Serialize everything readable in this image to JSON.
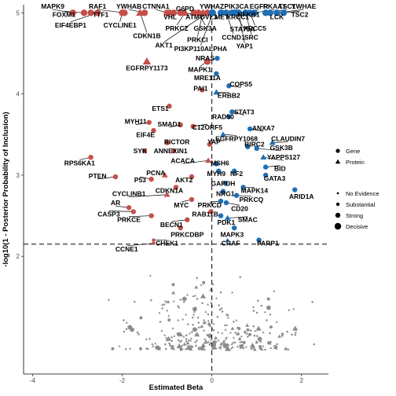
{
  "chart_data": {
    "type": "scatter",
    "title": "",
    "xlabel": "Estimated Beta",
    "ylabel": "-log10(1 - Posterior Probability of Inclusion)",
    "xlim": [
      -4.2,
      2.6
    ],
    "ylim": [
      0.55,
      5.1
    ],
    "x_ticks": [
      -4,
      -2,
      0,
      2
    ],
    "y_ticks": [
      2,
      3,
      4,
      5
    ],
    "threshold_y": 2.15,
    "zero_x": 0,
    "grid": false,
    "colors": {
      "negative": "#c4504a",
      "positive": "#1f6fb5",
      "insignificant": "#8c8c8c"
    },
    "legend_shape": {
      "items": [
        {
          "label": "Gene",
          "shape": "circle"
        },
        {
          "label": "Protein",
          "shape": "triangle"
        }
      ]
    },
    "legend_size": {
      "items": [
        {
          "label": "No Evidence",
          "size": 1
        },
        {
          "label": "Substantial",
          "size": 2
        },
        {
          "label": "Strong",
          "size": 3
        },
        {
          "label": "Decisive",
          "size": 4
        }
      ]
    },
    "points": [
      {
        "label": "MAPK9",
        "x": -3.1,
        "y": 5.0,
        "shape": "circle",
        "size": 4,
        "lx": -3.55,
        "ly": 5.08
      },
      {
        "label": "RAF1",
        "x": -1.95,
        "y": 5.0,
        "shape": "circle",
        "size": 4,
        "lx": -2.55,
        "ly": 5.08
      },
      {
        "label": "YWHAB",
        "x": -1.5,
        "y": 5.0,
        "shape": "circle",
        "size": 4,
        "lx": -1.85,
        "ly": 5.08
      },
      {
        "label": "CTNNA1",
        "x": -1.0,
        "y": 5.0,
        "shape": "circle",
        "size": 4,
        "lx": -1.25,
        "ly": 5.08
      },
      {
        "label": "FOXM1",
        "x": -2.85,
        "y": 5.0,
        "shape": "circle",
        "size": 4,
        "lx": -3.3,
        "ly": 4.98
      },
      {
        "label": "TTF1",
        "x": -2.7,
        "y": 5.0,
        "shape": "circle",
        "size": 4,
        "lx": -2.48,
        "ly": 4.98
      },
      {
        "label": "EIF4EBP1",
        "x": -2.55,
        "y": 5.0,
        "shape": "circle",
        "size": 4,
        "lx": -3.15,
        "ly": 4.85
      },
      {
        "label": "CYCLINE1",
        "x": -2.0,
        "y": 5.0,
        "shape": "circle",
        "size": 4,
        "lx": -2.05,
        "ly": 4.85
      },
      {
        "label": "CDKN1B",
        "x": -1.6,
        "y": 5.0,
        "shape": "triangle",
        "size": 4,
        "lx": -1.45,
        "ly": 4.72
      },
      {
        "label": "G6PD",
        "x": -0.85,
        "y": 5.0,
        "shape": "circle",
        "size": 4,
        "lx": -0.6,
        "ly": 5.05
      },
      {
        "label": "VHL",
        "x": -0.95,
        "y": 5.0,
        "shape": "circle",
        "size": 4,
        "lx": -0.93,
        "ly": 4.95
      },
      {
        "label": "ATM",
        "x": -0.7,
        "y": 5.0,
        "shape": "circle",
        "size": 4,
        "lx": -0.43,
        "ly": 4.95
      },
      {
        "label": "PRKCZ",
        "x": -0.6,
        "y": 5.0,
        "shape": "triangle",
        "size": 4,
        "lx": -0.78,
        "ly": 4.81
      },
      {
        "label": "DVL3",
        "x": -0.4,
        "y": 5.0,
        "shape": "circle",
        "size": 4,
        "lx": -0.07,
        "ly": 4.95
      },
      {
        "label": "GSK3A",
        "x": -0.3,
        "y": 5.0,
        "shape": "circle",
        "size": 4,
        "lx": -0.15,
        "ly": 4.81
      },
      {
        "label": "PRKCI",
        "x": -0.2,
        "y": 5.0,
        "shape": "triangle",
        "size": 4,
        "lx": -0.32,
        "ly": 4.67
      },
      {
        "label": "AKT1",
        "x": -0.1,
        "y": 5.0,
        "shape": "circle",
        "size": 4,
        "lx": -1.07,
        "ly": 4.6
      },
      {
        "label": "PI3KP110ALPHA",
        "x": 0.02,
        "y": 5.0,
        "shape": "circle",
        "size": 4,
        "lx": -0.25,
        "ly": 4.56
      },
      {
        "label": "YWHAZ",
        "x": 0.0,
        "y": 5.0,
        "shape": "circle",
        "size": 4,
        "lx": 0.0,
        "ly": 5.08
      },
      {
        "label": "PIK3CA",
        "x": 0.2,
        "y": 5.0,
        "shape": "circle",
        "size": 4,
        "lx": 0.55,
        "ly": 5.08
      },
      {
        "label": "NFKB1",
        "x": 0.55,
        "y": 5.0,
        "shape": "circle",
        "size": 4,
        "lx": 0.82,
        "ly": 4.98
      },
      {
        "label": "EGFR",
        "x": 0.75,
        "y": 5.0,
        "shape": "circle",
        "size": 4,
        "lx": 1.05,
        "ly": 5.08
      },
      {
        "label": "RKAA1",
        "x": 0.95,
        "y": 5.0,
        "shape": "circle",
        "size": 4,
        "lx": 1.4,
        "ly": 5.08
      },
      {
        "label": "TSC1",
        "x": 1.2,
        "y": 5.0,
        "shape": "circle",
        "size": 4,
        "lx": 1.68,
        "ly": 5.08
      },
      {
        "label": "YWHAE",
        "x": 1.45,
        "y": 5.0,
        "shape": "circle",
        "size": 4,
        "lx": 2.05,
        "ly": 5.08
      },
      {
        "label": "MET",
        "x": 0.22,
        "y": 5.0,
        "shape": "circle",
        "size": 4,
        "lx": 0.22,
        "ly": 4.95
      },
      {
        "label": "XRCC1",
        "x": 0.45,
        "y": 5.0,
        "shape": "circle",
        "size": 4,
        "lx": 0.58,
        "ly": 4.95
      },
      {
        "label": "TSC2",
        "x": 1.6,
        "y": 5.0,
        "shape": "circle",
        "size": 4,
        "lx": 1.96,
        "ly": 4.98
      },
      {
        "label": "LCK",
        "x": 1.3,
        "y": 5.0,
        "shape": "circle",
        "size": 4,
        "lx": 1.45,
        "ly": 4.95
      },
      {
        "label": "XRCC5",
        "x": 0.85,
        "y": 5.0,
        "shape": "circle",
        "size": 4,
        "lx": 0.96,
        "ly": 4.81
      },
      {
        "label": "STAT5A",
        "x": 0.52,
        "y": 5.0,
        "shape": "circle",
        "size": 4,
        "lx": 0.68,
        "ly": 4.8
      },
      {
        "label": "CCND1",
        "x": 0.32,
        "y": 5.0,
        "shape": "circle",
        "size": 4,
        "lx": 0.48,
        "ly": 4.7
      },
      {
        "label": "SRC",
        "x": 0.75,
        "y": 5.0,
        "shape": "circle",
        "size": 4,
        "lx": 0.88,
        "ly": 4.7
      },
      {
        "label": "YAP1",
        "x": 0.6,
        "y": 5.0,
        "shape": "circle",
        "size": 4,
        "lx": 0.73,
        "ly": 4.59
      },
      {
        "label": "NRAS",
        "x": 0.12,
        "y": 4.44,
        "shape": "circle",
        "size": 3,
        "lx": -0.15,
        "ly": 4.44
      },
      {
        "label": "EGFRPY1173",
        "x": -1.45,
        "y": 4.4,
        "shape": "triangle",
        "size": 4,
        "lx": -1.45,
        "ly": 4.32
      },
      {
        "label": "MAPK1",
        "x": -0.1,
        "y": 4.4,
        "shape": "circle",
        "size": 4,
        "lx": -0.27,
        "ly": 4.3
      },
      {
        "label": "MRE11A",
        "x": 0.1,
        "y": 4.25,
        "shape": "circle",
        "size": 3,
        "lx": -0.1,
        "ly": 4.2
      },
      {
        "label": "COPS5",
        "x": 0.38,
        "y": 4.1,
        "shape": "circle",
        "size": 3,
        "lx": 0.65,
        "ly": 4.12
      },
      {
        "label": "PAI1",
        "x": -0.22,
        "y": 4.05,
        "shape": "circle",
        "size": 3,
        "lx": -0.25,
        "ly": 4.07
      },
      {
        "label": "ERBB2",
        "x": 0.1,
        "y": 4.02,
        "shape": "triangle",
        "size": 3,
        "lx": 0.38,
        "ly": 3.98
      },
      {
        "label": "RAD50",
        "x": 0.38,
        "y": 3.72,
        "shape": "circle",
        "size": 3,
        "lx": 0.25,
        "ly": 3.72
      },
      {
        "label": "STAT3",
        "x": 0.45,
        "y": 3.78,
        "shape": "circle",
        "size": 3,
        "lx": 0.72,
        "ly": 3.78
      },
      {
        "label": "ETS1",
        "x": -0.95,
        "y": 3.85,
        "shape": "circle",
        "size": 3,
        "lx": -1.15,
        "ly": 3.82
      },
      {
        "label": "MYH11",
        "x": -1.4,
        "y": 3.65,
        "shape": "circle",
        "size": 3,
        "lx": -1.7,
        "ly": 3.66
      },
      {
        "label": "SMAD1",
        "x": -0.7,
        "y": 3.62,
        "shape": "circle",
        "size": 3,
        "lx": -0.95,
        "ly": 3.63
      },
      {
        "label": "C12ORF5",
        "x": -0.42,
        "y": 3.6,
        "shape": "circle",
        "size": 3,
        "lx": -0.1,
        "ly": 3.59
      },
      {
        "label": "ANXA7",
        "x": 0.85,
        "y": 3.57,
        "shape": "circle",
        "size": 3,
        "lx": 1.15,
        "ly": 3.58
      },
      {
        "label": "EIF4E",
        "x": -1.3,
        "y": 3.55,
        "shape": "circle",
        "size": 3,
        "lx": -1.48,
        "ly": 3.5
      },
      {
        "label": "EGFRPY1068",
        "x": 0.25,
        "y": 3.5,
        "shape": "triangle",
        "size": 3,
        "lx": 0.55,
        "ly": 3.45
      },
      {
        "label": "CLAUDIN7",
        "x": 1.35,
        "y": 3.4,
        "shape": "triangle",
        "size": 3,
        "lx": 1.7,
        "ly": 3.45
      },
      {
        "label": "RICTOR",
        "x": -1.0,
        "y": 3.4,
        "shape": "circle",
        "size": 3,
        "lx": -0.78,
        "ly": 3.41
      },
      {
        "label": "YAP",
        "x": -0.05,
        "y": 3.38,
        "shape": "circle",
        "size": 3,
        "lx": 0.05,
        "ly": 3.41
      },
      {
        "label": "BIRC2",
        "x": 0.8,
        "y": 3.35,
        "shape": "circle",
        "size": 3,
        "lx": 0.95,
        "ly": 3.38
      },
      {
        "label": "GSK3B",
        "x": 1.0,
        "y": 3.33,
        "shape": "circle",
        "size": 3,
        "lx": 1.55,
        "ly": 3.34
      },
      {
        "label": "SYK",
        "x": -1.5,
        "y": 3.3,
        "shape": "circle",
        "size": 3,
        "lx": -1.6,
        "ly": 3.3
      },
      {
        "label": "ANNEXIN1",
        "x": -0.85,
        "y": 3.3,
        "shape": "circle",
        "size": 3,
        "lx": -0.92,
        "ly": 3.3
      },
      {
        "label": "YAPPS127",
        "x": 1.15,
        "y": 3.22,
        "shape": "triangle",
        "size": 3,
        "lx": 1.6,
        "ly": 3.22
      },
      {
        "label": "RPS6KA1",
        "x": -2.7,
        "y": 3.22,
        "shape": "circle",
        "size": 3,
        "lx": -2.95,
        "ly": 3.15
      },
      {
        "label": "ACACA",
        "x": -0.08,
        "y": 3.18,
        "shape": "triangle",
        "size": 3,
        "lx": -0.65,
        "ly": 3.18
      },
      {
        "label": "MSH6",
        "x": 0.1,
        "y": 3.14,
        "shape": "circle",
        "size": 3,
        "lx": 0.18,
        "ly": 3.15
      },
      {
        "label": "BID",
        "x": 1.2,
        "y": 3.1,
        "shape": "circle",
        "size": 3,
        "lx": 1.52,
        "ly": 3.08
      },
      {
        "label": "MYH9",
        "x": 0.15,
        "y": 3.05,
        "shape": "circle",
        "size": 3,
        "lx": 0.1,
        "ly": 3.02
      },
      {
        "label": "NF2",
        "x": 0.5,
        "y": 3.05,
        "shape": "circle",
        "size": 3,
        "lx": 0.55,
        "ly": 3.02
      },
      {
        "label": "GATA3",
        "x": 1.2,
        "y": 3.0,
        "shape": "circle",
        "size": 3,
        "lx": 1.4,
        "ly": 2.96
      },
      {
        "label": "PCNA",
        "x": -1.05,
        "y": 3.0,
        "shape": "triangle",
        "size": 3,
        "lx": -1.25,
        "ly": 3.03
      },
      {
        "label": "PTEN",
        "x": -2.15,
        "y": 2.98,
        "shape": "circle",
        "size": 3,
        "lx": -2.55,
        "ly": 2.99
      },
      {
        "label": "AKT2",
        "x": -0.45,
        "y": 2.98,
        "shape": "circle",
        "size": 3,
        "lx": -0.62,
        "ly": 2.94
      },
      {
        "label": "P53",
        "x": -1.35,
        "y": 2.95,
        "shape": "circle",
        "size": 3,
        "lx": -1.6,
        "ly": 2.94
      },
      {
        "label": "GAPDH",
        "x": 0.3,
        "y": 2.9,
        "shape": "circle",
        "size": 3,
        "lx": 0.25,
        "ly": 2.9
      },
      {
        "label": "MAPK14",
        "x": 0.7,
        "y": 2.85,
        "shape": "circle",
        "size": 3,
        "lx": 0.95,
        "ly": 2.81
      },
      {
        "label": "ARID1A",
        "x": 1.85,
        "y": 2.82,
        "shape": "circle",
        "size": 3,
        "lx": 2.0,
        "ly": 2.74
      },
      {
        "label": "CDKN1A",
        "x": -0.8,
        "y": 2.85,
        "shape": "circle",
        "size": 3,
        "lx": -0.95,
        "ly": 2.81
      },
      {
        "label": "NRG1",
        "x": 0.25,
        "y": 2.8,
        "shape": "circle",
        "size": 3,
        "lx": 0.3,
        "ly": 2.77
      },
      {
        "label": "CYCLINB1",
        "x": -1.0,
        "y": 2.76,
        "shape": "triangle",
        "size": 3,
        "lx": -1.85,
        "ly": 2.77
      },
      {
        "label": "PRKCQ",
        "x": 0.55,
        "y": 2.75,
        "shape": "circle",
        "size": 3,
        "lx": 0.88,
        "ly": 2.7
      },
      {
        "label": "MYC",
        "x": -0.45,
        "y": 2.7,
        "shape": "circle",
        "size": 3,
        "lx": -0.68,
        "ly": 2.63
      },
      {
        "label": "PRKCD",
        "x": 0.2,
        "y": 2.68,
        "shape": "circle",
        "size": 3,
        "lx": -0.05,
        "ly": 2.63
      },
      {
        "label": "CD20",
        "x": 0.32,
        "y": 2.66,
        "shape": "circle",
        "size": 3,
        "lx": 0.62,
        "ly": 2.59
      },
      {
        "label": "AR",
        "x": -1.85,
        "y": 2.6,
        "shape": "circle",
        "size": 3,
        "lx": -2.15,
        "ly": 2.66
      },
      {
        "label": "RAB11B",
        "x": -0.02,
        "y": 2.55,
        "shape": "circle",
        "size": 3,
        "lx": -0.15,
        "ly": 2.52
      },
      {
        "label": "CASP3",
        "x": -1.75,
        "y": 2.55,
        "shape": "circle",
        "size": 3,
        "lx": -2.3,
        "ly": 2.52
      },
      {
        "label": "PRKCE",
        "x": -1.35,
        "y": 2.5,
        "shape": "circle",
        "size": 3,
        "lx": -1.85,
        "ly": 2.45
      },
      {
        "label": "PDK1",
        "x": 0.2,
        "y": 2.5,
        "shape": "circle",
        "size": 3,
        "lx": 0.32,
        "ly": 2.42
      },
      {
        "label": "SMAC",
        "x": 0.35,
        "y": 2.47,
        "shape": "triangle",
        "size": 3,
        "lx": 0.8,
        "ly": 2.45
      },
      {
        "label": "BECN1",
        "x": -0.55,
        "y": 2.45,
        "shape": "circle",
        "size": 3,
        "lx": -0.9,
        "ly": 2.39
      },
      {
        "label": "PRKCDBP",
        "x": -0.7,
        "y": 2.35,
        "shape": "circle",
        "size": 3,
        "lx": -0.55,
        "ly": 2.27
      },
      {
        "label": "MAPK3",
        "x": 0.5,
        "y": 2.35,
        "shape": "circle",
        "size": 3,
        "lx": 0.45,
        "ly": 2.27
      },
      {
        "label": "CHEK1",
        "x": -1.3,
        "y": 2.2,
        "shape": "circle",
        "size": 2,
        "lx": -1.0,
        "ly": 2.16
      },
      {
        "label": "CRAF",
        "x": 0.35,
        "y": 2.2,
        "shape": "triangle",
        "size": 2,
        "lx": 0.42,
        "ly": 2.16
      },
      {
        "label": "PARP1",
        "x": 1.05,
        "y": 2.2,
        "shape": "circle",
        "size": 3,
        "lx": 1.25,
        "ly": 2.16
      },
      {
        "label": "CCNE1",
        "x": -1.3,
        "y": 2.16,
        "shape": "circle",
        "size": 2,
        "lx": -1.9,
        "ly": 2.09
      }
    ]
  }
}
